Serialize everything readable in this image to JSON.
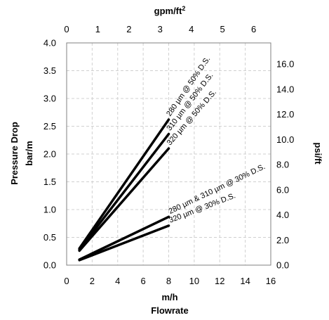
{
  "chart_data": {
    "type": "line",
    "xlabel_line1": "m/h",
    "xlabel_line2": "Flowrate",
    "x2label_main": "gpm/ft",
    "x2label_sup": "2",
    "ylabel_line1": "Pressure Drop",
    "ylabel_line2": "bar/m",
    "y2label": "psi/ft",
    "xlim": [
      0,
      16
    ],
    "ylim": [
      0,
      4.0
    ],
    "x2lim": [
      0,
      6.55
    ],
    "y2lim": [
      0,
      17.68
    ],
    "x_ticks": [
      "0",
      "2",
      "4",
      "6",
      "8",
      "10",
      "12",
      "14",
      "16"
    ],
    "x_tick_values": [
      0,
      2,
      4,
      6,
      8,
      10,
      12,
      14,
      16
    ],
    "y_ticks": [
      "0.0",
      "0.5",
      "1.0",
      "1.5",
      "2.0",
      "2.5",
      "3.0",
      "3.5",
      "4.0"
    ],
    "y_tick_values": [
      0,
      0.5,
      1.0,
      1.5,
      2.0,
      2.5,
      3.0,
      3.5,
      4.0
    ],
    "x2_ticks": [
      "0",
      "1",
      "2",
      "3",
      "4",
      "5",
      "6"
    ],
    "x2_tick_values": [
      0,
      1,
      2,
      3,
      4,
      5,
      6
    ],
    "y2_ticks": [
      "0.0",
      "2.0",
      "4.0",
      "6.0",
      "8.0",
      "10.0",
      "12.0",
      "14.0",
      "16.0"
    ],
    "y2_tick_values": [
      0,
      2,
      4,
      6,
      8,
      10,
      12,
      14,
      16
    ],
    "grid": true,
    "series": [
      {
        "name": "280 µm @ 50% D.S.",
        "x": [
          1,
          8
        ],
        "y": [
          0.3,
          2.62
        ]
      },
      {
        "name": "310 µm @ 50% D.S.",
        "x": [
          1,
          8
        ],
        "y": [
          0.28,
          2.36
        ]
      },
      {
        "name": "320 µm @ 50% D.S.",
        "x": [
          1,
          8
        ],
        "y": [
          0.26,
          2.1
        ]
      },
      {
        "name": "280 µm & 310 µm @ 30% D.S.",
        "x": [
          1,
          8
        ],
        "y": [
          0.1,
          0.87
        ]
      },
      {
        "name": "320 µm @ 30% D.S.",
        "x": [
          1,
          8
        ],
        "y": [
          0.09,
          0.71
        ]
      }
    ]
  }
}
